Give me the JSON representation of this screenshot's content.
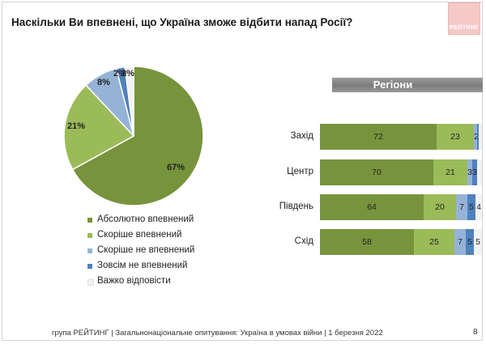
{
  "title": "Наскільки Ви впевнені, що Україна зможе відбити напад Росії?",
  "logo_text": "РЕЙТИНГ",
  "colors": {
    "absolutely": "#77933c",
    "rather": "#9bbb59",
    "rather_not": "#95b3d7",
    "not_at_all": "#4f81bd",
    "hard_to_say": "#f2f2f2"
  },
  "chart_data": [
    {
      "type": "pie",
      "categories": [
        "Абсолютно впевнений",
        "Скоріше впевнений",
        "Скоріше не впевнений",
        "Зовсім не впевнений",
        "Важко відповісти"
      ],
      "values": [
        67,
        21,
        8,
        2,
        2
      ],
      "data_labels": [
        "67%",
        "21%",
        "8%",
        "2%",
        "2%"
      ],
      "legend_position": "bottom"
    },
    {
      "type": "bar",
      "orientation": "horizontal",
      "stacked": true,
      "title": "Регіони",
      "categories": [
        "Захід",
        "Центр",
        "Південь",
        "Схід"
      ],
      "series": [
        {
          "name": "Абсолютно впевнений",
          "values": [
            72,
            70,
            64,
            58
          ]
        },
        {
          "name": "Скоріше впевнений",
          "values": [
            23,
            21,
            20,
            25
          ]
        },
        {
          "name": "Скоріше не впевнений",
          "values": [
            2,
            3,
            7,
            7
          ]
        },
        {
          "name": "Зовсім не впевнений",
          "values": [
            1,
            3,
            5,
            5
          ]
        },
        {
          "name": "Важко відповісти",
          "values": [
            2,
            3,
            4,
            5
          ]
        }
      ],
      "data_labels": [
        [
          "72",
          "23",
          "2",
          "1",
          ""
        ],
        [
          "70",
          "21",
          "3",
          "3",
          ""
        ],
        [
          "64",
          "20",
          "7",
          "5",
          "4"
        ],
        [
          "58",
          "25",
          "7",
          "5",
          "5"
        ]
      ]
    }
  ],
  "legend": [
    {
      "label": "Абсолютно впевнений",
      "color_key": "absolutely"
    },
    {
      "label": "Скоріше впевнений",
      "color_key": "rather"
    },
    {
      "label": "Скоріше не впевнений",
      "color_key": "rather_not"
    },
    {
      "label": "Зовсім не впевнений",
      "color_key": "not_at_all"
    },
    {
      "label": "Важко відповісти",
      "color_key": "hard_to_say"
    }
  ],
  "footer": "група РЕЙТИНГ | Загальнонаціональне опитування: Україна в умовах війни | 1 березня 2022",
  "page_number": "8"
}
